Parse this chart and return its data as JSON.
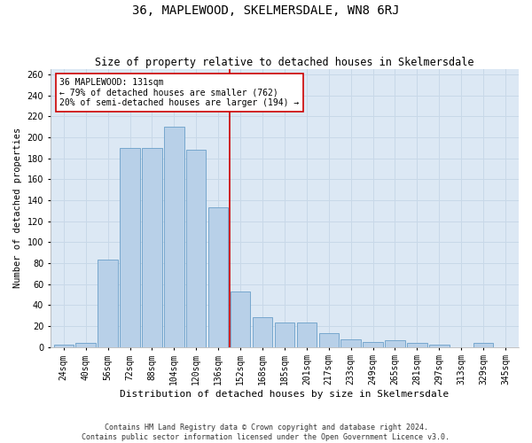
{
  "title": "36, MAPLEWOOD, SKELMERSDALE, WN8 6RJ",
  "subtitle": "Size of property relative to detached houses in Skelmersdale",
  "xlabel": "Distribution of detached houses by size in Skelmersdale",
  "ylabel": "Number of detached properties",
  "footer1": "Contains HM Land Registry data © Crown copyright and database right 2024.",
  "footer2": "Contains public sector information licensed under the Open Government Licence v3.0.",
  "categories": [
    "24sqm",
    "40sqm",
    "56sqm",
    "72sqm",
    "88sqm",
    "104sqm",
    "120sqm",
    "136sqm",
    "152sqm",
    "168sqm",
    "185sqm",
    "201sqm",
    "217sqm",
    "233sqm",
    "249sqm",
    "265sqm",
    "281sqm",
    "297sqm",
    "313sqm",
    "329sqm",
    "345sqm"
  ],
  "values": [
    2,
    4,
    83,
    190,
    190,
    210,
    188,
    133,
    53,
    28,
    23,
    23,
    13,
    7,
    5,
    6,
    4,
    2,
    0,
    4,
    0
  ],
  "bar_color": "#b8d0e8",
  "bar_edge_color": "#6a9fc8",
  "grid_color": "#c8d8e8",
  "background_color": "#dce8f4",
  "annotation_text": "36 MAPLEWOOD: 131sqm\n← 79% of detached houses are smaller (762)\n20% of semi-detached houses are larger (194) →",
  "vline_position": 7.5,
  "vline_color": "#cc0000",
  "ylim": [
    0,
    265
  ],
  "yticks": [
    0,
    20,
    40,
    60,
    80,
    100,
    120,
    140,
    160,
    180,
    200,
    220,
    240,
    260
  ],
  "title_fontsize": 10,
  "subtitle_fontsize": 8.5,
  "xlabel_fontsize": 8,
  "ylabel_fontsize": 7.5,
  "tick_fontsize": 7,
  "annotation_fontsize": 7,
  "footer_fontsize": 6
}
